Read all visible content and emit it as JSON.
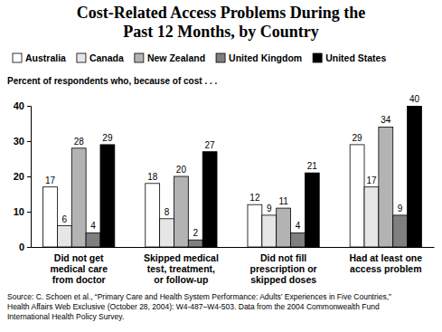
{
  "chart_data": {
    "type": "bar",
    "title": "Cost-Related Access Problems During the\nPast 12 Months, by Country",
    "subtitle": "Percent of respondents who, because of cost . . .",
    "categories": [
      "Did not get\nmedical care\nfrom doctor",
      "Skipped medical\ntest, treatment,\nor follow-up",
      "Did not fill\nprescription or\nskipped doses",
      "Had at least one\naccess problem"
    ],
    "series": [
      {
        "name": "Australia",
        "color": "#ffffff",
        "values": [
          17,
          18,
          12,
          29
        ]
      },
      {
        "name": "Canada",
        "color": "#e6e6e6",
        "values": [
          6,
          8,
          9,
          17
        ]
      },
      {
        "name": "New Zealand",
        "color": "#b3b3b3",
        "values": [
          28,
          20,
          11,
          34
        ]
      },
      {
        "name": "United Kingdom",
        "color": "#7f7f7f",
        "values": [
          4,
          2,
          4,
          9
        ]
      },
      {
        "name": "United States",
        "color": "#000000",
        "values": [
          29,
          27,
          21,
          40
        ]
      }
    ],
    "ylim": [
      0,
      40
    ],
    "yticks": [
      0,
      10,
      20,
      30,
      40
    ],
    "grid": false,
    "legend": "top",
    "data_labels": true,
    "annotations": [
      "Source: C. Schoen et al., “Primary Care and Health System Performance: Adults’ Experiences in Five Countries,”\nHealth Affairs Web Exclusive (October 28, 2004): W4-487–W4-503. Data from the 2004 Commonwealth Fund\nInternational Health Policy Survey."
    ]
  }
}
